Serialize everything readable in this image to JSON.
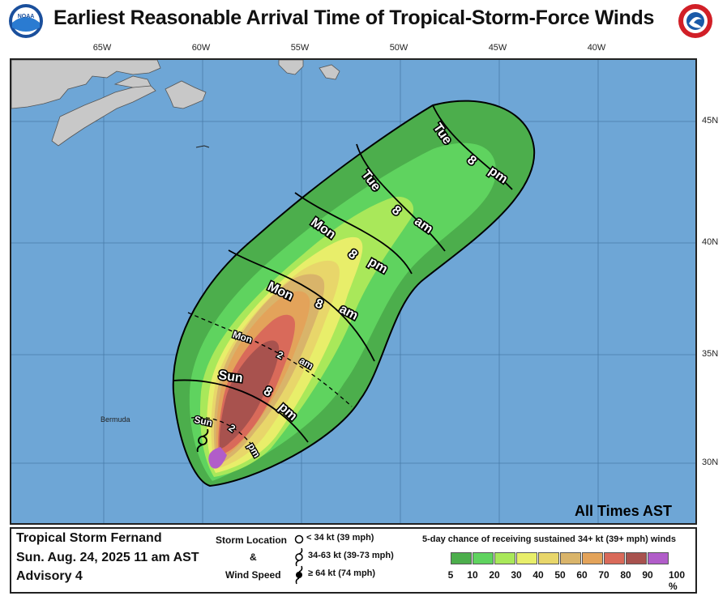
{
  "header": {
    "title": "Earliest Reasonable Arrival Time of Tropical-Storm-Force Winds",
    "left_logo_text": "NOAA",
    "right_logo_text": "NATIONAL WEATHER SERVICE"
  },
  "map": {
    "longitude_ticks": [
      "65W",
      "60W",
      "55W",
      "50W",
      "45W",
      "40W"
    ],
    "latitude_ticks": [
      "45N",
      "40N",
      "35N",
      "30N"
    ],
    "place_label": "Bermuda",
    "time_labels": [
      {
        "text": "Sun",
        "style": "small"
      },
      {
        "text": "2",
        "style": "small"
      },
      {
        "text": "pm",
        "style": "small"
      },
      {
        "text": "Sun",
        "style": "large"
      },
      {
        "text": "8",
        "style": "large"
      },
      {
        "text": "pm",
        "style": "large"
      },
      {
        "text": "Mon",
        "style": "small"
      },
      {
        "text": "2",
        "style": "small"
      },
      {
        "text": "am",
        "style": "small"
      },
      {
        "text": "Mon",
        "style": "large"
      },
      {
        "text": "8",
        "style": "large"
      },
      {
        "text": "am",
        "style": "large"
      },
      {
        "text": "Mon",
        "style": "large"
      },
      {
        "text": "8",
        "style": "large"
      },
      {
        "text": "pm",
        "style": "large"
      },
      {
        "text": "Tue",
        "style": "large"
      },
      {
        "text": "8",
        "style": "large"
      },
      {
        "text": "am",
        "style": "large"
      },
      {
        "text": "Tue",
        "style": "large"
      },
      {
        "text": "8",
        "style": "large"
      },
      {
        "text": "pm",
        "style": "large"
      }
    ],
    "all_times": "All Times AST"
  },
  "legend": {
    "storm_name": "Tropical Storm Fernand",
    "issued": "Sun. Aug. 24, 2025  11 am AST",
    "advisory": "Advisory 4",
    "storm_location_title_1": "Storm Location",
    "storm_location_title_2": "&",
    "storm_location_title_3": "Wind Speed",
    "symbols": [
      {
        "text": "< 34 kt (39 mph)"
      },
      {
        "text": "34-63 kt (39-73 mph)"
      },
      {
        "text": "≥ 64 kt (74 mph)"
      }
    ],
    "scale_title": "5-day chance of receiving sustained 34+ kt (39+ mph) winds",
    "scale_labels": [
      "5",
      "10",
      "20",
      "30",
      "40",
      "50",
      "60",
      "70",
      "80",
      "90",
      "100 %"
    ],
    "scale_colors": [
      "#4cae4c",
      "#5fd35f",
      "#a9e85a",
      "#e8ee6a",
      "#e8d66a",
      "#d9b46a",
      "#e3a35a",
      "#d96a5a",
      "#a8524e",
      "#b15dc9"
    ]
  }
}
